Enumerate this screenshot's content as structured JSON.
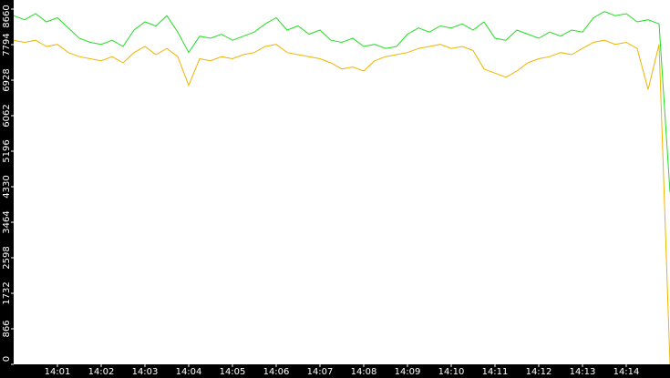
{
  "chart_data": {
    "type": "line",
    "x": [
      0,
      0.25,
      0.5,
      0.75,
      1,
      1.25,
      1.5,
      1.75,
      2,
      2.25,
      2.5,
      2.75,
      3,
      3.25,
      3.5,
      3.75,
      4,
      4.25,
      4.5,
      4.75,
      5,
      5.25,
      5.5,
      5.75,
      6,
      6.25,
      6.5,
      6.75,
      7,
      7.25,
      7.5,
      7.75,
      8,
      8.25,
      8.5,
      8.75,
      9,
      9.25,
      9.5,
      9.75,
      10,
      10.25,
      10.5,
      10.75,
      11,
      11.25,
      11.5,
      11.75,
      12,
      12.25,
      12.5,
      12.75,
      13,
      13.25,
      13.5,
      13.75,
      14,
      14.25,
      14.5,
      14.75,
      15
    ],
    "series": [
      {
        "color": "#22dd22",
        "values": [
          8500,
          8400,
          8550,
          8350,
          8450,
          8200,
          7950,
          7850,
          7800,
          7900,
          7750,
          8150,
          8350,
          8250,
          8500,
          8100,
          7600,
          8000,
          7950,
          8050,
          7900,
          8000,
          8100,
          8300,
          8450,
          8150,
          8250,
          8050,
          8150,
          7900,
          7850,
          7950,
          7750,
          7800,
          7700,
          7750,
          8050,
          8200,
          8100,
          8250,
          8200,
          8300,
          8150,
          8350,
          7950,
          7900,
          8150,
          8050,
          7950,
          8100,
          8000,
          8150,
          8100,
          8450,
          8600,
          8500,
          8550,
          8350,
          8400,
          8300,
          4200
        ]
      },
      {
        "color": "#f0b400",
        "values": [
          7900,
          7850,
          7900,
          7750,
          7800,
          7600,
          7500,
          7450,
          7400,
          7500,
          7350,
          7600,
          7750,
          7550,
          7700,
          7500,
          6800,
          7450,
          7400,
          7500,
          7450,
          7550,
          7600,
          7750,
          7800,
          7600,
          7550,
          7500,
          7450,
          7350,
          7200,
          7250,
          7150,
          7400,
          7500,
          7550,
          7600,
          7700,
          7750,
          7800,
          7700,
          7750,
          7650,
          7200,
          7100,
          7000,
          7150,
          7350,
          7450,
          7500,
          7600,
          7550,
          7700,
          7850,
          7900,
          7800,
          7850,
          7700,
          6700,
          7800,
          0
        ]
      }
    ],
    "xlim": [
      0,
      15
    ],
    "xticks": [
      {
        "value": 1,
        "label": "14:01"
      },
      {
        "value": 2,
        "label": "14:02"
      },
      {
        "value": 3,
        "label": "14:03"
      },
      {
        "value": 4,
        "label": "14:04"
      },
      {
        "value": 5,
        "label": "14:05"
      },
      {
        "value": 6,
        "label": "14:06"
      },
      {
        "value": 7,
        "label": "14:07"
      },
      {
        "value": 8,
        "label": "14:08"
      },
      {
        "value": 9,
        "label": "14:09"
      },
      {
        "value": 10,
        "label": "14:10"
      },
      {
        "value": 11,
        "label": "14:11"
      },
      {
        "value": 12,
        "label": "14:12"
      },
      {
        "value": 13,
        "label": "14:13"
      },
      {
        "value": 14,
        "label": "14:14"
      }
    ],
    "ylim": [
      0,
      8660
    ],
    "yticks": [
      0,
      866,
      1732,
      2598,
      3464,
      4330,
      5196,
      6062,
      6928,
      7794,
      8660
    ],
    "grid": false
  }
}
